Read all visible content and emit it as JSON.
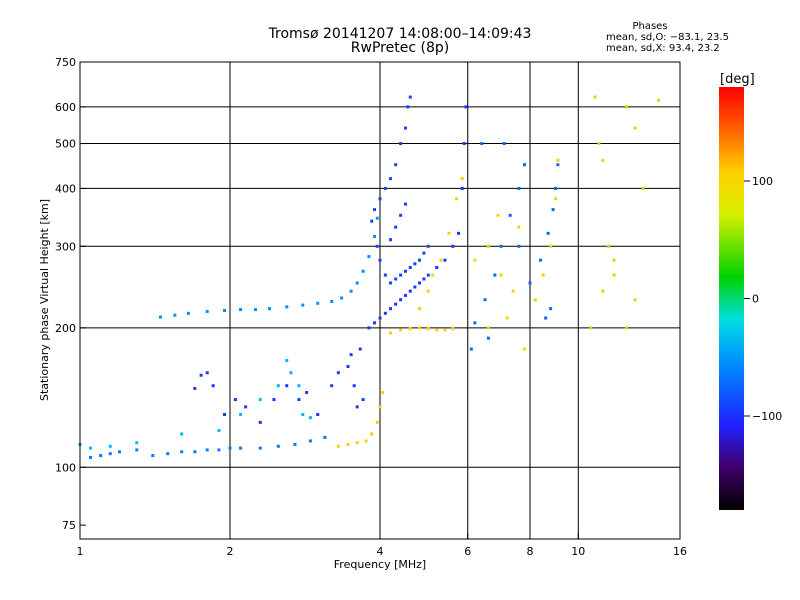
{
  "header": {
    "title_line1": "Tromsø 20141207 14:08:00–14:09:43",
    "title_line2": "RwPretec (8p)",
    "phases_heading": "Phases",
    "phases_o": "mean, sd,O: −83.1, 23.5",
    "phases_x": "mean, sd,X:  93.4, 23.2"
  },
  "chart_data": {
    "type": "scatter",
    "title": "Tromsø 20141207 14:08:00–14:09:43",
    "subtitle": "RwPretec (8p)",
    "xlabel": "Frequency [MHz]",
    "ylabel": "Stationary phase Virtual Height [km]",
    "x_scale": "log",
    "y_scale": "log",
    "xlim": [
      1,
      16
    ],
    "ylim": [
      70,
      750
    ],
    "x_ticks": [
      1,
      2,
      4,
      6,
      8,
      10,
      16
    ],
    "x_tick_labels": [
      "1",
      "2",
      "4",
      "6",
      "8",
      "10",
      "16"
    ],
    "x_grid": [
      2,
      4,
      6,
      8,
      10
    ],
    "y_ticks": [
      75,
      100,
      200,
      300,
      400,
      500,
      600,
      750
    ],
    "y_tick_labels": [
      "75",
      "100",
      "200",
      "300",
      "400",
      "500",
      "600",
      "750"
    ],
    "y_grid": [
      100,
      200,
      300,
      400,
      500,
      600
    ],
    "grid": true,
    "colorbar": {
      "label": "[deg]",
      "range": [
        -180,
        180
      ],
      "ticks": [
        100,
        0,
        -100
      ],
      "tick_labels": [
        "100",
        "0",
        "−100"
      ]
    },
    "series": [
      {
        "phase": -70,
        "points": [
          [
            1.05,
            105
          ],
          [
            1.1,
            106
          ],
          [
            1.15,
            107
          ],
          [
            1.2,
            108
          ],
          [
            1.3,
            109
          ],
          [
            1.4,
            106
          ],
          [
            1.5,
            107
          ],
          [
            1.6,
            108
          ],
          [
            1.7,
            108
          ],
          [
            1.8,
            109
          ],
          [
            1.9,
            109
          ],
          [
            2.0,
            110
          ],
          [
            2.1,
            110
          ],
          [
            2.3,
            110
          ],
          [
            2.5,
            111
          ],
          [
            2.7,
            112
          ],
          [
            2.9,
            114
          ],
          [
            3.1,
            116
          ]
        ]
      },
      {
        "phase": -60,
        "points": [
          [
            1.45,
            211
          ],
          [
            1.55,
            213
          ],
          [
            1.65,
            215
          ],
          [
            1.8,
            217
          ],
          [
            1.95,
            218
          ],
          [
            2.1,
            219
          ],
          [
            2.25,
            219
          ],
          [
            2.4,
            220
          ],
          [
            2.6,
            222
          ],
          [
            2.8,
            224
          ],
          [
            3.0,
            226
          ],
          [
            3.2,
            228
          ],
          [
            3.35,
            232
          ],
          [
            3.5,
            240
          ],
          [
            3.6,
            250
          ],
          [
            3.7,
            265
          ],
          [
            3.8,
            285
          ],
          [
            3.9,
            315
          ],
          [
            3.95,
            345
          ]
        ]
      },
      {
        "phase": -40,
        "points": [
          [
            1.0,
            112
          ],
          [
            1.05,
            110
          ],
          [
            1.15,
            111
          ],
          [
            1.3,
            113
          ],
          [
            1.6,
            118
          ],
          [
            1.9,
            120
          ],
          [
            2.1,
            130
          ],
          [
            2.3,
            140
          ],
          [
            2.5,
            150
          ],
          [
            2.6,
            170
          ],
          [
            2.65,
            160
          ],
          [
            2.75,
            150
          ],
          [
            2.8,
            130
          ],
          [
            2.9,
            128
          ]
        ]
      },
      {
        "phase": 110,
        "points": [
          [
            3.3,
            111
          ],
          [
            3.45,
            112
          ],
          [
            3.6,
            113
          ],
          [
            3.75,
            114
          ],
          [
            3.85,
            118
          ],
          [
            3.95,
            125
          ],
          [
            4.0,
            135
          ],
          [
            4.05,
            145
          ]
        ]
      },
      {
        "phase": -100,
        "points": [
          [
            1.7,
            148
          ],
          [
            1.75,
            158
          ],
          [
            1.8,
            160
          ],
          [
            1.85,
            150
          ],
          [
            1.95,
            130
          ],
          [
            2.05,
            140
          ],
          [
            2.15,
            135
          ],
          [
            2.3,
            125
          ],
          [
            2.45,
            140
          ],
          [
            2.6,
            150
          ],
          [
            2.75,
            140
          ],
          [
            2.85,
            145
          ],
          [
            3.0,
            130
          ],
          [
            3.2,
            150
          ],
          [
            3.3,
            160
          ],
          [
            3.45,
            165
          ],
          [
            3.5,
            175
          ],
          [
            3.55,
            150
          ],
          [
            3.6,
            135
          ],
          [
            3.65,
            180
          ],
          [
            3.7,
            140
          ]
        ]
      },
      {
        "phase": -95,
        "points": [
          [
            3.85,
            340
          ],
          [
            3.9,
            360
          ],
          [
            4.0,
            380
          ],
          [
            4.1,
            400
          ],
          [
            4.2,
            420
          ],
          [
            4.3,
            450
          ],
          [
            4.4,
            500
          ],
          [
            4.5,
            540
          ],
          [
            4.55,
            600
          ],
          [
            4.6,
            630
          ],
          [
            3.95,
            300
          ],
          [
            4.0,
            280
          ],
          [
            4.1,
            260
          ],
          [
            4.2,
            250
          ],
          [
            4.3,
            255
          ],
          [
            4.4,
            260
          ],
          [
            4.5,
            265
          ],
          [
            4.6,
            270
          ],
          [
            4.7,
            275
          ],
          [
            4.8,
            280
          ],
          [
            4.9,
            290
          ],
          [
            5.0,
            300
          ],
          [
            4.2,
            310
          ],
          [
            4.3,
            330
          ],
          [
            4.4,
            350
          ],
          [
            4.5,
            370
          ]
        ]
      },
      {
        "phase": -100,
        "points": [
          [
            3.8,
            200
          ],
          [
            3.9,
            205
          ],
          [
            4.0,
            210
          ],
          [
            4.1,
            215
          ],
          [
            4.2,
            220
          ],
          [
            4.3,
            225
          ],
          [
            4.4,
            230
          ],
          [
            4.5,
            235
          ],
          [
            4.6,
            240
          ],
          [
            4.7,
            245
          ],
          [
            4.8,
            250
          ],
          [
            4.9,
            255
          ],
          [
            5.0,
            260
          ],
          [
            5.2,
            270
          ],
          [
            5.4,
            280
          ],
          [
            5.6,
            300
          ],
          [
            5.75,
            320
          ],
          [
            5.85,
            400
          ],
          [
            5.9,
            500
          ],
          [
            5.95,
            600
          ]
        ]
      },
      {
        "phase": 110,
        "points": [
          [
            4.2,
            195
          ],
          [
            4.4,
            198
          ],
          [
            4.6,
            199
          ],
          [
            4.8,
            200
          ],
          [
            5.0,
            199
          ],
          [
            5.2,
            198
          ],
          [
            5.4,
            198
          ],
          [
            5.6,
            199
          ],
          [
            4.8,
            220
          ],
          [
            5.0,
            240
          ],
          [
            5.1,
            260
          ],
          [
            5.3,
            280
          ],
          [
            5.5,
            320
          ],
          [
            5.7,
            380
          ],
          [
            5.85,
            420
          ]
        ]
      },
      {
        "phase": -80,
        "points": [
          [
            6.2,
            205
          ],
          [
            6.5,
            230
          ],
          [
            6.8,
            260
          ],
          [
            7.0,
            300
          ],
          [
            7.3,
            350
          ],
          [
            7.6,
            400
          ],
          [
            7.8,
            450
          ],
          [
            6.4,
            500
          ],
          [
            7.1,
            500
          ],
          [
            7.6,
            300
          ],
          [
            8.0,
            250
          ],
          [
            8.4,
            280
          ],
          [
            8.7,
            320
          ],
          [
            8.9,
            360
          ],
          [
            9.0,
            400
          ],
          [
            9.1,
            450
          ],
          [
            8.6,
            210
          ],
          [
            8.8,
            220
          ],
          [
            6.1,
            180
          ],
          [
            6.6,
            190
          ]
        ]
      },
      {
        "phase": 105,
        "points": [
          [
            6.2,
            280
          ],
          [
            6.6,
            300
          ],
          [
            7.0,
            260
          ],
          [
            7.4,
            240
          ],
          [
            8.2,
            230
          ],
          [
            8.5,
            260
          ],
          [
            8.8,
            300
          ],
          [
            9.0,
            380
          ],
          [
            9.1,
            460
          ],
          [
            6.9,
            350
          ],
          [
            7.6,
            330
          ],
          [
            6.6,
            200
          ],
          [
            7.2,
            210
          ],
          [
            7.8,
            180
          ]
        ]
      },
      {
        "phase": 60,
        "points": [
          [
            10.8,
            630
          ],
          [
            11.0,
            500
          ],
          [
            11.2,
            460
          ],
          [
            11.5,
            300
          ],
          [
            11.8,
            280
          ],
          [
            12.5,
            600
          ],
          [
            13.0,
            540
          ],
          [
            13.5,
            400
          ],
          [
            14.5,
            620
          ],
          [
            10.6,
            200
          ],
          [
            11.2,
            240
          ],
          [
            11.8,
            260
          ],
          [
            12.5,
            200
          ],
          [
            13.0,
            230
          ]
        ]
      }
    ]
  }
}
